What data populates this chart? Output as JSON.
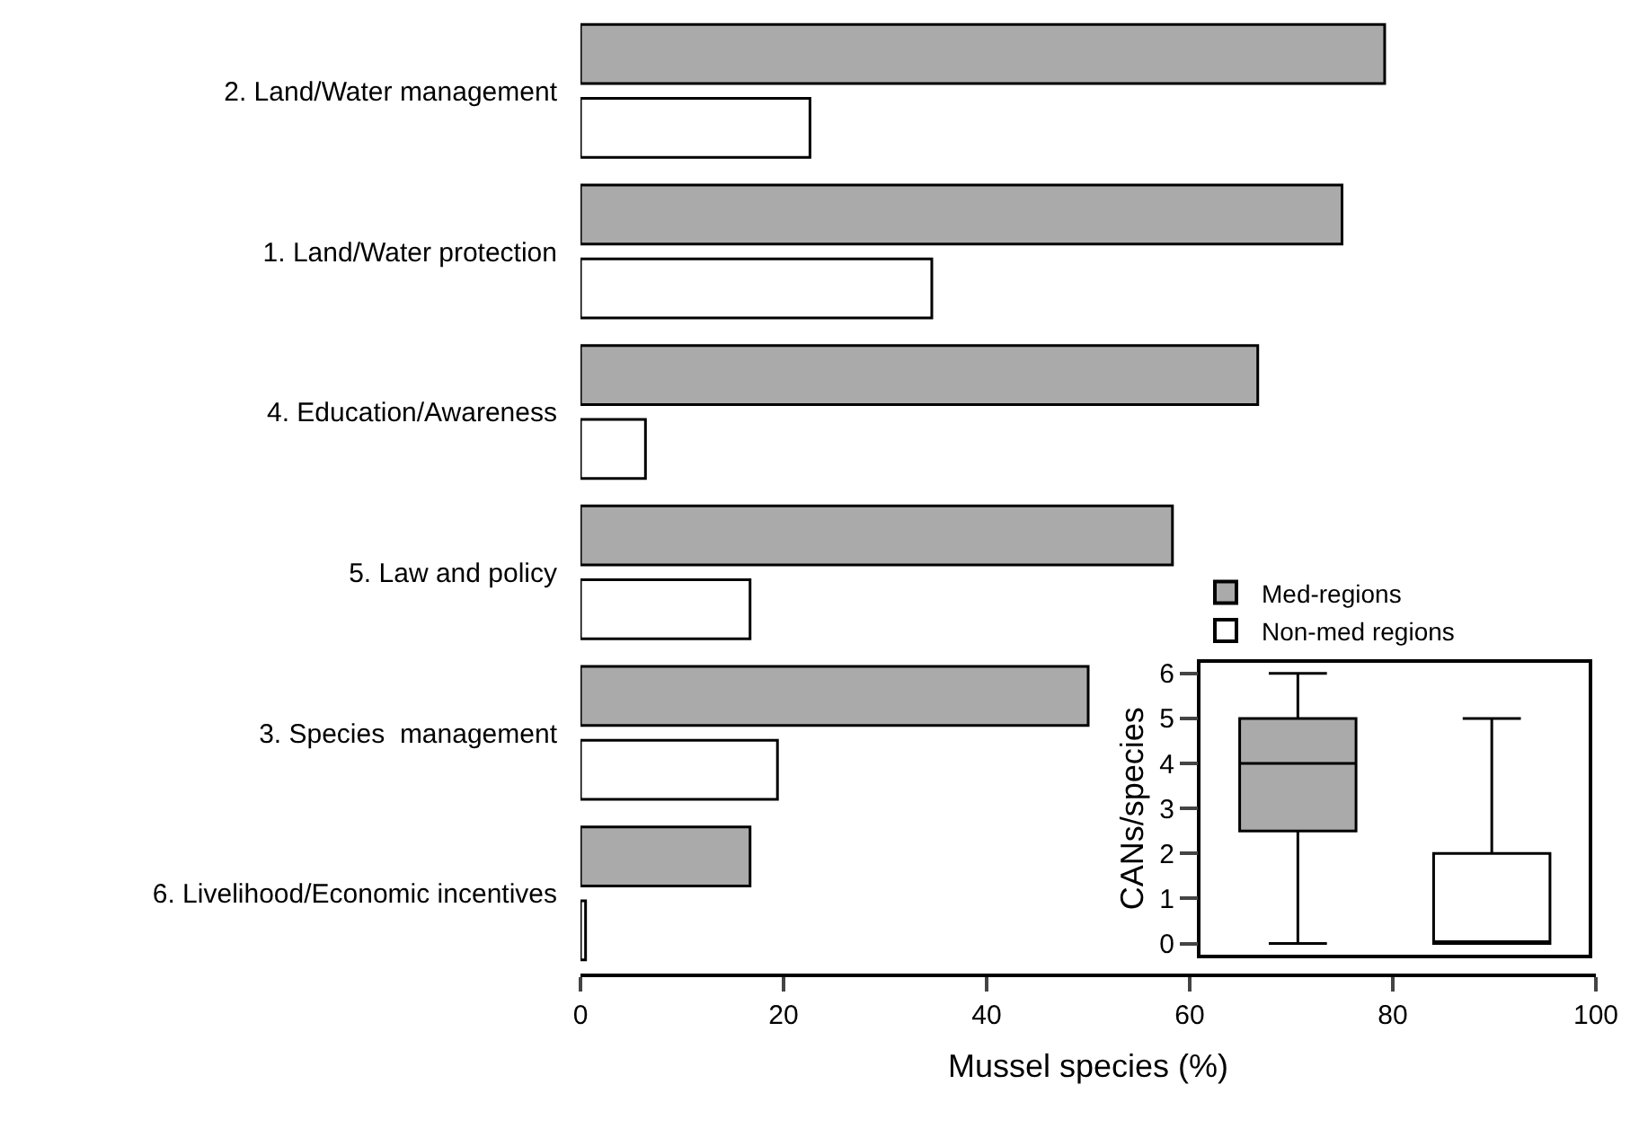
{
  "chart_data": [
    {
      "type": "bar",
      "orientation": "horizontal",
      "xlabel": "Mussel species (%)",
      "categories": [
        "2. Land/Water management",
        "1. Land/Water protection",
        "4. Education/Awareness",
        "5. Law and policy",
        "3. Species  management",
        "6. Livelihood/Economic incentives"
      ],
      "series": [
        {
          "name": "Med-regions",
          "color": "#aaaaaa",
          "values": [
            79.2,
            75.0,
            66.7,
            58.3,
            50.0,
            16.7
          ]
        },
        {
          "name": "Non-med regions",
          "color": "#ffffff",
          "values": [
            22.6,
            34.6,
            6.4,
            16.7,
            19.4,
            0.5
          ]
        }
      ],
      "xlim": [
        0,
        100
      ],
      "xticks": [
        0,
        20,
        40,
        60,
        80,
        100
      ],
      "legend": "bottom right"
    },
    {
      "type": "box",
      "ylabel": "CANs/species",
      "categories": [
        null,
        null
      ],
      "ylim": [
        -0.24,
        6.24
      ],
      "yticks": [
        0,
        1,
        2,
        3,
        4,
        5,
        6
      ],
      "tick_labels": "y",
      "series": [
        {
          "color": "#aaaaaa",
          "boxes": [
            {
              "low": 0,
              "q1": 2.5,
              "median": 4,
              "q3": 5,
              "high": 6
            },
            null
          ]
        },
        {
          "color": "#ffffff",
          "boxes": [
            null,
            {
              "low": 0,
              "q1": 0,
              "median": 0,
              "q3": 2,
              "high": 5
            }
          ]
        }
      ]
    }
  ]
}
